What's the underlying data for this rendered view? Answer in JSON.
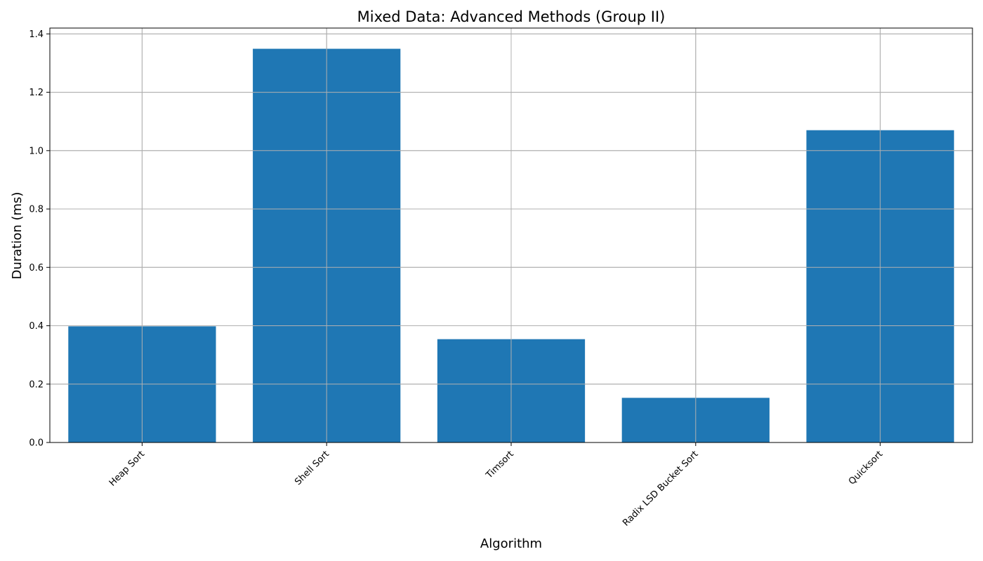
{
  "chart_data": {
    "type": "bar",
    "title": "Mixed Data: Advanced Methods (Group II)",
    "xlabel": "Algorithm",
    "ylabel": "Duration (ms)",
    "categories": [
      "Heap Sort",
      "Shell Sort",
      "Timsort",
      "Radix LSD Bucket Sort",
      "Quicksort"
    ],
    "values": [
      0.398,
      1.349,
      0.354,
      0.153,
      1.07
    ],
    "ylim": [
      0,
      1.42
    ],
    "yticks": [
      "0.0",
      "0.2",
      "0.4",
      "0.6",
      "0.8",
      "1.0",
      "1.2",
      "1.4"
    ],
    "grid": true,
    "bar_color": "#1f77b4"
  }
}
